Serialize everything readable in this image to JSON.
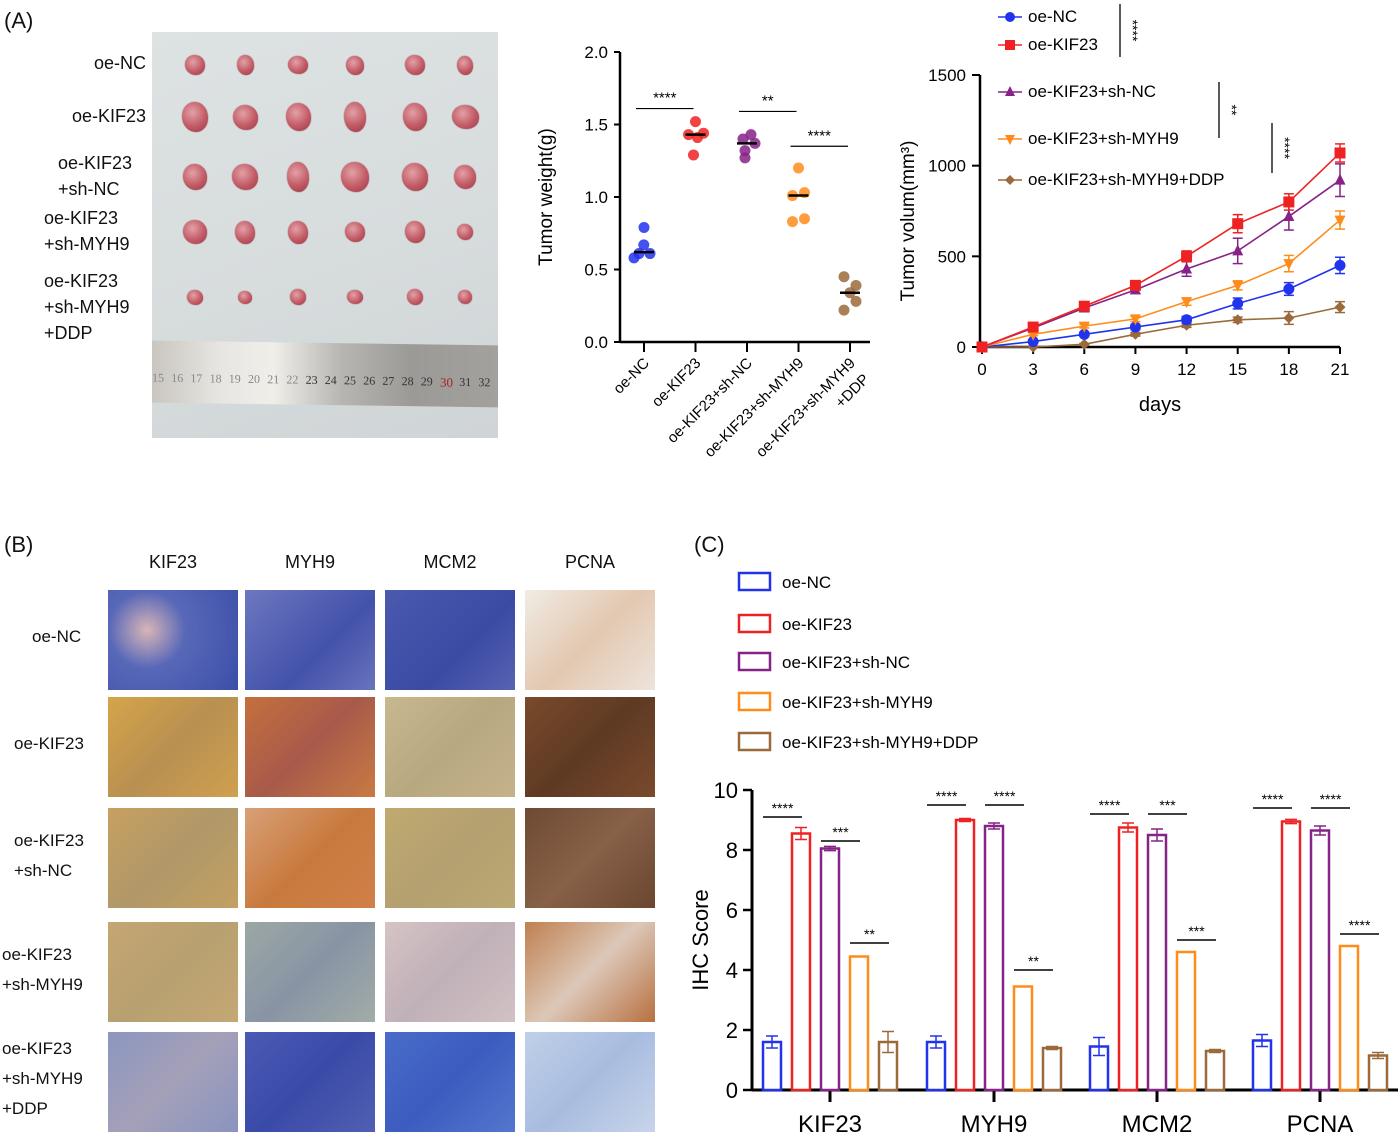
{
  "panels": {
    "a_label": "(A)",
    "b_label": "(B)",
    "c_label": "(C)"
  },
  "photo": {
    "row_labels": [
      [
        "oe-NC"
      ],
      [
        "oe-KIF23"
      ],
      [
        "oe-KIF23",
        "+sh-NC"
      ],
      [
        "oe-KIF23",
        "+sh-MYH9"
      ],
      [
        "oe-KIF23",
        "+sh-MYH9",
        "+DDP"
      ]
    ],
    "ruler_numbers": [
      "15",
      "16",
      "17",
      "18",
      "19",
      "20",
      "21",
      "22",
      "23",
      "24",
      "25",
      "26",
      "27",
      "28",
      "29",
      "30",
      "31",
      "32"
    ],
    "ruler_highlight": "30"
  },
  "ihc": {
    "columns": [
      "KIF23",
      "MYH9",
      "MCM2",
      "PCNA"
    ],
    "row_labels": [
      [
        "oe-NC"
      ],
      [
        "oe-KIF23"
      ],
      [
        "oe-KIF23",
        "+sh-NC"
      ],
      [
        "oe-KIF23",
        "+sh-MYH9"
      ],
      [
        "oe-KIF23",
        "+sh-MYH9",
        "+DDP"
      ]
    ]
  },
  "groups": [
    {
      "name": "oe-NC",
      "color": "#2233ee"
    },
    {
      "name": "oe-KIF23",
      "color": "#ee2222"
    },
    {
      "name": "oe-KIF23+sh-NC",
      "color": "#862288"
    },
    {
      "name": "oe-KIF23+sh-MYH9",
      "color": "#ff8c1a"
    },
    {
      "name": "oe-KIF23+sh-MYH9+DDP",
      "color": "#9a6a3a"
    }
  ],
  "chart_data": [
    {
      "type": "scatter",
      "title": "",
      "ylabel": "Tumor weight(g)",
      "xlabel": "",
      "ylim": [
        0,
        2.0
      ],
      "yticks": [
        "0.0",
        "0.5",
        "1.0",
        "1.5",
        "2.0"
      ],
      "categories": [
        "oe-NC",
        "oe-KIF23",
        "oe-KIF23+sh-NC",
        "oe-KIF23+sh-MYH9",
        "oe-KIF23+sh-MYH9\n+DDP"
      ],
      "series": [
        {
          "name": "oe-NC",
          "values": [
            0.79,
            0.67,
            0.61,
            0.61,
            0.58
          ],
          "median": 0.62
        },
        {
          "name": "oe-KIF23",
          "values": [
            1.52,
            1.43,
            1.41,
            1.44,
            1.29
          ],
          "median": 1.43
        },
        {
          "name": "oe-KIF23+sh-NC",
          "values": [
            1.4,
            1.43,
            1.37,
            1.32,
            1.27
          ],
          "median": 1.37
        },
        {
          "name": "oe-KIF23+sh-MYH9",
          "values": [
            1.2,
            1.01,
            1.03,
            0.83,
            0.85
          ],
          "median": 1.01
        },
        {
          "name": "oe-KIF23+sh-MYH9+DDP",
          "values": [
            0.45,
            0.39,
            0.34,
            0.28,
            0.22
          ],
          "median": 0.34
        }
      ],
      "significance": [
        {
          "from": 0,
          "to": 1,
          "y": 1.61,
          "label": "****"
        },
        {
          "from": 2,
          "to": 3,
          "y": 1.59,
          "label": "**"
        },
        {
          "from": 3,
          "to": 4,
          "y": 1.35,
          "label": "****"
        }
      ]
    },
    {
      "type": "line",
      "title": "",
      "xlabel": "days",
      "ylabel": "Tumor volum(mm³)",
      "ylim": [
        0,
        1500
      ],
      "yticks": [
        "0",
        "500",
        "1000",
        "1500"
      ],
      "x": [
        0,
        3,
        6,
        9,
        12,
        15,
        18,
        21
      ],
      "xticks": [
        "0",
        "3",
        "6",
        "9",
        "12",
        "15",
        "18",
        "21"
      ],
      "legend_position": "top",
      "series": [
        {
          "name": "oe-NC",
          "marker": "circle",
          "values": [
            0,
            30,
            70,
            110,
            150,
            240,
            320,
            450
          ],
          "err": [
            0,
            8,
            12,
            15,
            18,
            30,
            35,
            45
          ]
        },
        {
          "name": "oe-KIF23",
          "marker": "square",
          "values": [
            0,
            110,
            225,
            340,
            500,
            680,
            800,
            1070
          ],
          "err": [
            0,
            12,
            15,
            20,
            30,
            50,
            45,
            50
          ]
        },
        {
          "name": "oe-KIF23+sh-NC",
          "marker": "triangle-up",
          "values": [
            0,
            105,
            215,
            315,
            430,
            530,
            720,
            920
          ],
          "err": [
            0,
            10,
            15,
            20,
            40,
            70,
            75,
            90
          ]
        },
        {
          "name": "oe-KIF23+sh-MYH9",
          "marker": "triangle-down",
          "values": [
            0,
            70,
            115,
            155,
            250,
            340,
            460,
            700
          ],
          "err": [
            0,
            8,
            10,
            15,
            20,
            25,
            45,
            50
          ]
        },
        {
          "name": "oe-KIF23+sh-MYH9+DDP",
          "marker": "diamond",
          "values": [
            0,
            0,
            15,
            70,
            120,
            150,
            160,
            220
          ],
          "err": [
            0,
            5,
            5,
            10,
            12,
            15,
            35,
            30
          ]
        }
      ],
      "significance": [
        {
          "between": [
            "oe-NC",
            "oe-KIF23"
          ],
          "label": "****"
        },
        {
          "between": [
            "oe-KIF23+sh-NC",
            "oe-KIF23+sh-MYH9"
          ],
          "label": "**"
        },
        {
          "between": [
            "oe-KIF23+sh-MYH9",
            "oe-KIF23+sh-MYH9+DDP"
          ],
          "label": "****"
        }
      ]
    },
    {
      "type": "bar",
      "title": "",
      "xlabel": "",
      "ylabel": "IHC Score",
      "ylim": [
        0,
        10
      ],
      "yticks": [
        "0",
        "2",
        "4",
        "6",
        "8",
        "10"
      ],
      "categories": [
        "KIF23",
        "MYH9",
        "MCM2",
        "PCNA"
      ],
      "legend_position": "top-left",
      "series": [
        {
          "name": "oe-NC",
          "values": [
            1.6,
            1.6,
            1.45,
            1.65
          ],
          "err": [
            0.2,
            0.2,
            0.3,
            0.2
          ]
        },
        {
          "name": "oe-KIF23",
          "values": [
            8.55,
            9.0,
            8.75,
            8.95
          ],
          "err": [
            0.2,
            0.05,
            0.15,
            0.07
          ]
        },
        {
          "name": "oe-KIF23+sh-NC",
          "values": [
            8.05,
            8.8,
            8.5,
            8.65
          ],
          "err": [
            0.07,
            0.1,
            0.2,
            0.15
          ]
        },
        {
          "name": "oe-KIF23+sh-MYH9",
          "values": [
            4.45,
            3.45,
            4.6,
            4.8
          ],
          "err": [
            0,
            0,
            0,
            0
          ]
        },
        {
          "name": "oe-KIF23+sh-MYH9+DDP",
          "values": [
            1.6,
            1.4,
            1.3,
            1.15
          ],
          "err": [
            0.35,
            0.05,
            0.05,
            0.1
          ]
        }
      ],
      "significance": [
        {
          "category": "KIF23",
          "pairs": [
            [
              0,
              1,
              "****",
              9.1
            ],
            [
              2,
              3,
              "***",
              8.3
            ],
            [
              3,
              4,
              "**",
              4.9
            ]
          ]
        },
        {
          "category": "MYH9",
          "pairs": [
            [
              0,
              1,
              "****",
              9.5
            ],
            [
              2,
              3,
              "****",
              9.5
            ],
            [
              3,
              4,
              "**",
              4.0
            ]
          ]
        },
        {
          "category": "MCM2",
          "pairs": [
            [
              0,
              1,
              "****",
              9.2
            ],
            [
              2,
              3,
              "***",
              9.2
            ],
            [
              3,
              4,
              "***",
              5.0
            ]
          ]
        },
        {
          "category": "PCNA",
          "pairs": [
            [
              0,
              1,
              "****",
              9.4
            ],
            [
              2,
              3,
              "****",
              9.4
            ],
            [
              3,
              4,
              "****",
              5.2
            ]
          ]
        }
      ]
    }
  ]
}
